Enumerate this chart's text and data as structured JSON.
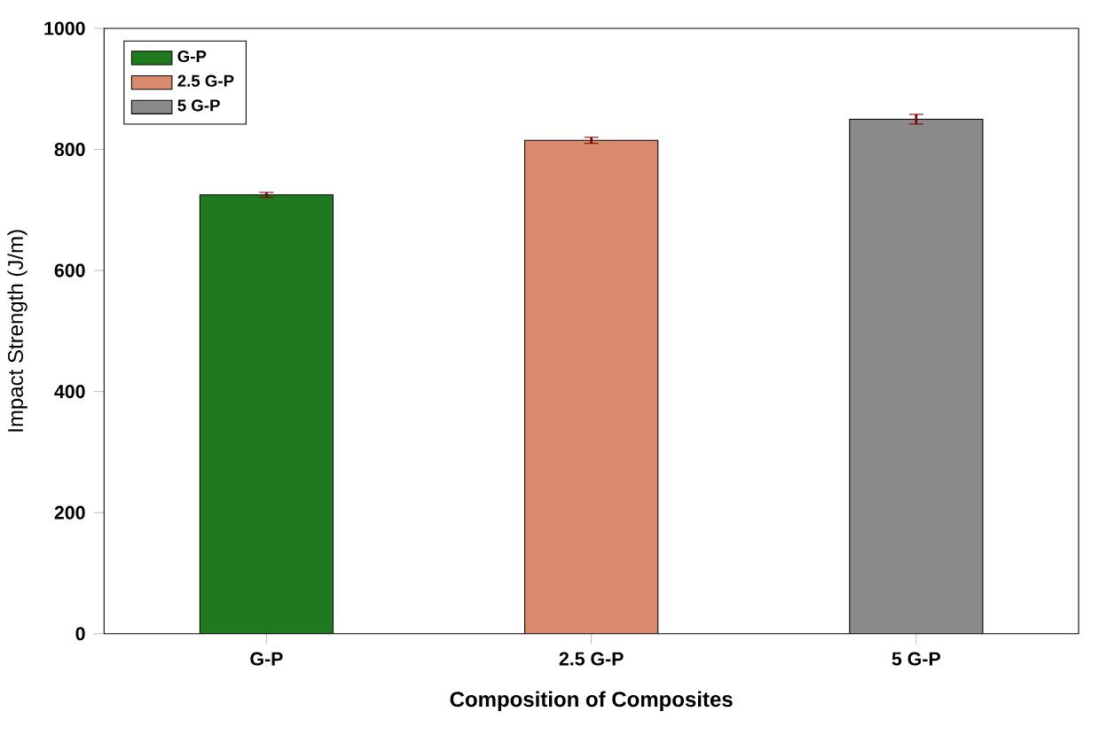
{
  "chart_data": {
    "type": "bar",
    "xlabel": "Composition of Composites",
    "ylabel": "Impact Strength (J/m)",
    "categories": [
      "G-P",
      "2.5 G-P",
      "5 G-P"
    ],
    "series": [
      {
        "name": "G-P",
        "color": "#1f7a1f",
        "values": [
          725,
          null,
          null
        ],
        "errors": [
          4,
          null,
          null
        ]
      },
      {
        "name": "2.5 G-P",
        "color": "#d98a6c",
        "values": [
          null,
          815,
          null
        ],
        "errors": [
          null,
          5,
          null
        ]
      },
      {
        "name": "5 G-P",
        "color": "#8a8a8a",
        "values": [
          null,
          null,
          850
        ],
        "errors": [
          null,
          null,
          8
        ]
      }
    ],
    "ylim": [
      0,
      1000
    ],
    "yticks": [
      0,
      200,
      400,
      600,
      800,
      1000
    ],
    "legend": "top left",
    "grid": false
  }
}
